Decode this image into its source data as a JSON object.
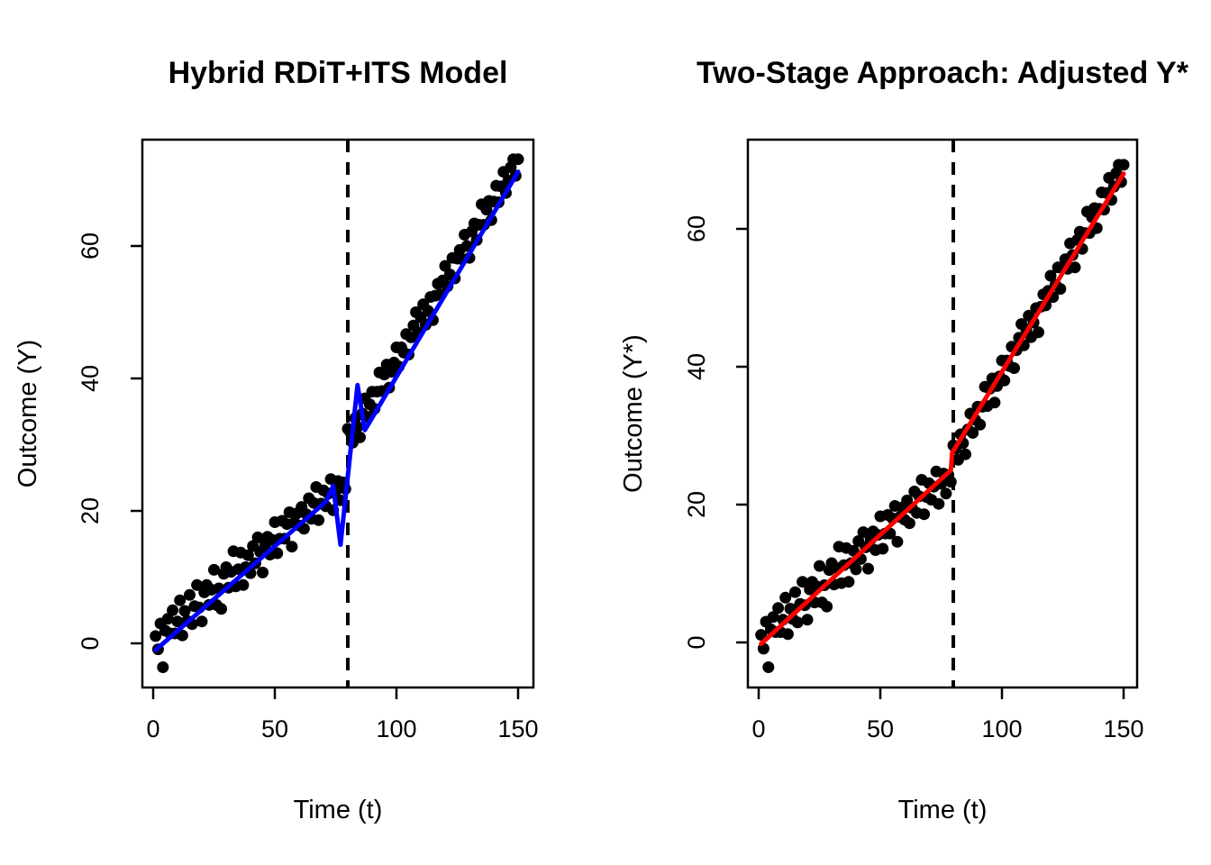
{
  "figure": {
    "background_color": "#ffffff",
    "layout": "two-panel R base-graphics plot, side by side"
  },
  "chart_data": [
    {
      "type": "scatter",
      "title": "Hybrid RDiT+ITS Model",
      "xlabel": "Time (t)",
      "ylabel": "Outcome (Y)",
      "x_ticks": [
        0,
        50,
        100,
        150
      ],
      "y_ticks": [
        0,
        20,
        40,
        60
      ],
      "xlim": [
        -4.4,
        156.3
      ],
      "ylim": [
        -6.7,
        76.0
      ],
      "grid": false,
      "point_color": "#000000",
      "fit_line_color": "#0000FF",
      "cutoff_x": 80,
      "cutoff_line": {
        "style": "dashed",
        "color": "#000000"
      },
      "points": {
        "t_start": 1,
        "y": [
          1.1,
          -0.9,
          3.0,
          -3.6,
          1.9,
          3.7,
          1.5,
          5.0,
          1.5,
          3.3,
          6.5,
          1.2,
          4.9,
          3.4,
          7.3,
          2.9,
          5.6,
          8.8,
          5.4,
          3.3,
          7.7,
          8.8,
          5.8,
          8.1,
          11.1,
          5.8,
          8.3,
          5.2,
          10.5,
          11.5,
          8.4,
          10.8,
          13.9,
          8.6,
          11.2,
          13.7,
          8.8,
          11.5,
          13.3,
          10.6,
          14.7,
          12.1,
          16.0,
          13.8,
          10.7,
          14.9,
          16.1,
          13.4,
          15.6,
          18.3,
          13.6,
          15.8,
          18.5,
          15.8,
          18.0,
          19.8,
          14.6,
          18.2,
          19.6,
          17.8,
          20.6,
          17.3,
          19.5,
          21.9,
          18.8,
          21.2,
          23.6,
          18.6,
          21.1,
          23.1,
          20.7,
          22.6,
          24.8,
          20.1,
          23.0,
          24.5,
          21.6,
          24.3,
          23.3,
          32.4,
          31.9,
          30.3,
          34.0,
          32.7,
          31.1,
          34.7,
          37.0,
          34.2,
          36.1,
          38.0,
          35.4,
          38.0,
          40.9,
          38.1,
          40.6,
          42.1,
          38.6,
          41.0,
          42.4,
          44.7,
          41.8,
          44.7,
          43.9,
          46.7,
          43.6,
          46.2,
          48.0,
          50.0,
          46.9,
          49.2,
          51.2,
          48.1,
          50.2,
          52.3,
          48.8,
          52.5,
          54.3,
          52.7,
          54.8,
          57.0,
          53.9,
          55.7,
          58.2,
          55.1,
          58.1,
          59.4,
          58.0,
          61.7,
          60.0,
          58.2,
          62.2,
          63.4,
          60.9,
          63.2,
          66.3,
          63.2,
          65.5,
          66.8,
          63.9,
          66.7,
          69.1,
          66.6,
          69.0,
          71.2,
          68.0,
          69.9,
          71.9,
          73.1,
          70.6,
          73.1
        ]
      },
      "fit_line": [
        [
          1,
          -1.0
        ],
        [
          71,
          21.4
        ],
        [
          74,
          23.8
        ],
        [
          77,
          14.9
        ],
        [
          84,
          39.0
        ],
        [
          87,
          32.2
        ],
        [
          150,
          71.2
        ]
      ]
    },
    {
      "type": "scatter",
      "title": "Two-Stage Approach: Adjusted Y*",
      "xlabel": "Time (t)",
      "ylabel": "Outcome (Y*)",
      "x_ticks": [
        0,
        50,
        100,
        150
      ],
      "y_ticks": [
        0,
        20,
        40,
        60
      ],
      "xlim": [
        -4.4,
        155.6
      ],
      "ylim": [
        -6.5,
        72.9
      ],
      "grid": false,
      "point_color": "#000000",
      "fit_line_color": "#FF0000",
      "cutoff_x": 80,
      "cutoff_line": {
        "style": "dashed",
        "color": "#000000"
      },
      "points": {
        "t_start": 1,
        "y": [
          1.1,
          -0.9,
          3.0,
          -3.6,
          1.9,
          3.7,
          1.5,
          5.0,
          1.5,
          3.3,
          6.5,
          1.2,
          4.9,
          3.4,
          7.3,
          2.9,
          5.6,
          8.8,
          5.4,
          3.3,
          7.7,
          8.8,
          5.8,
          8.1,
          11.1,
          5.8,
          8.3,
          5.2,
          10.5,
          11.5,
          8.4,
          10.8,
          13.9,
          8.6,
          11.2,
          13.7,
          8.8,
          11.5,
          13.3,
          10.6,
          14.7,
          12.1,
          16.0,
          13.8,
          10.7,
          14.9,
          16.1,
          13.4,
          15.6,
          18.3,
          13.6,
          15.8,
          18.5,
          15.8,
          18.0,
          19.8,
          14.6,
          18.2,
          19.6,
          17.8,
          20.6,
          17.3,
          19.5,
          21.9,
          18.8,
          21.2,
          23.6,
          18.6,
          21.1,
          23.1,
          20.7,
          22.6,
          24.8,
          20.1,
          23.0,
          24.5,
          21.6,
          24.3,
          23.3,
          28.6,
          28.1,
          26.5,
          30.2,
          28.9,
          27.3,
          30.9,
          33.2,
          30.4,
          32.3,
          34.2,
          31.6,
          34.2,
          37.1,
          34.3,
          36.8,
          38.3,
          34.8,
          37.2,
          38.6,
          40.9,
          38.0,
          40.9,
          40.1,
          42.9,
          39.8,
          42.4,
          44.2,
          46.2,
          43.1,
          45.4,
          47.4,
          44.3,
          46.4,
          48.5,
          45.0,
          48.7,
          50.5,
          48.9,
          51.0,
          53.2,
          50.1,
          51.9,
          54.4,
          51.3,
          54.3,
          55.6,
          54.2,
          57.9,
          56.2,
          54.4,
          58.4,
          59.6,
          57.1,
          59.4,
          62.5,
          59.4,
          61.7,
          63.0,
          60.1,
          62.9,
          65.3,
          62.8,
          65.2,
          67.4,
          64.2,
          66.1,
          68.1,
          69.3,
          66.8,
          69.3
        ]
      },
      "fit_line": [
        [
          1,
          -0.2
        ],
        [
          79,
          25.0
        ],
        [
          79.5,
          27.5
        ],
        [
          150,
          68.0
        ]
      ]
    }
  ]
}
